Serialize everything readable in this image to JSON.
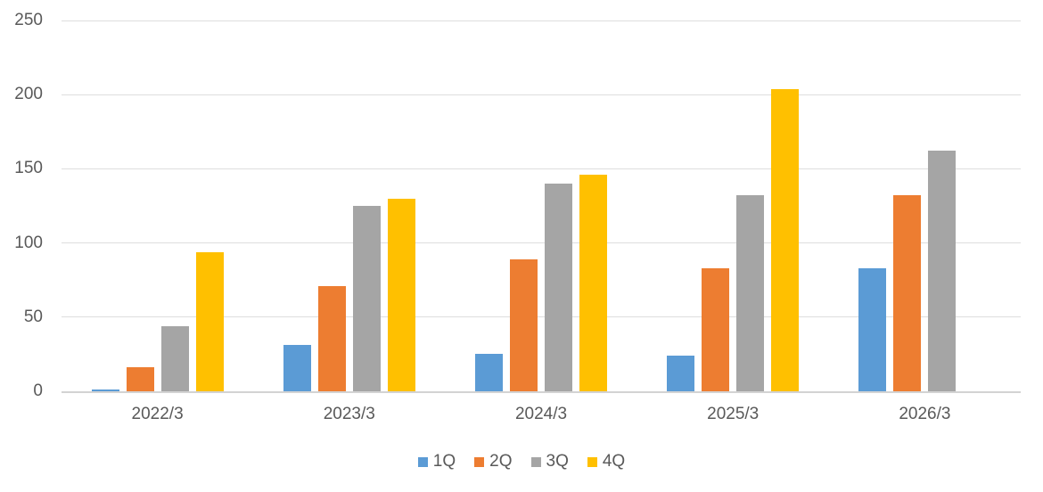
{
  "chart_data": {
    "type": "bar",
    "categories": [
      "2022/3",
      "2023/3",
      "2024/3",
      "2025/3",
      "2026/3"
    ],
    "series": [
      {
        "name": "1Q",
        "color": "#5B9BD5",
        "values": [
          1,
          31,
          25,
          24,
          83
        ]
      },
      {
        "name": "2Q",
        "color": "#ED7D31",
        "values": [
          16,
          71,
          89,
          83,
          132
        ]
      },
      {
        "name": "3Q",
        "color": "#A5A5A5",
        "values": [
          44,
          125,
          140,
          132,
          162
        ]
      },
      {
        "name": "4Q",
        "color": "#FFC000",
        "values": [
          94,
          130,
          146,
          204,
          null
        ]
      }
    ],
    "title": "",
    "xlabel": "",
    "ylabel": "",
    "ylim": [
      0,
      250
    ],
    "yticks": [
      0,
      50,
      100,
      150,
      200,
      250
    ],
    "grid": true,
    "legend_position": "bottom",
    "legend_labels": [
      "1Q",
      "2Q",
      "3Q",
      "4Q"
    ]
  },
  "colors": {
    "background": "#FFFFFF",
    "text": "#595959",
    "gridline": "#DEDEDE",
    "axis_line": "#D3D3D3",
    "series_1q": "#5B9BD5",
    "series_2q": "#ED7D31",
    "series_3q": "#A5A5A5",
    "series_4q": "#FFC000"
  }
}
